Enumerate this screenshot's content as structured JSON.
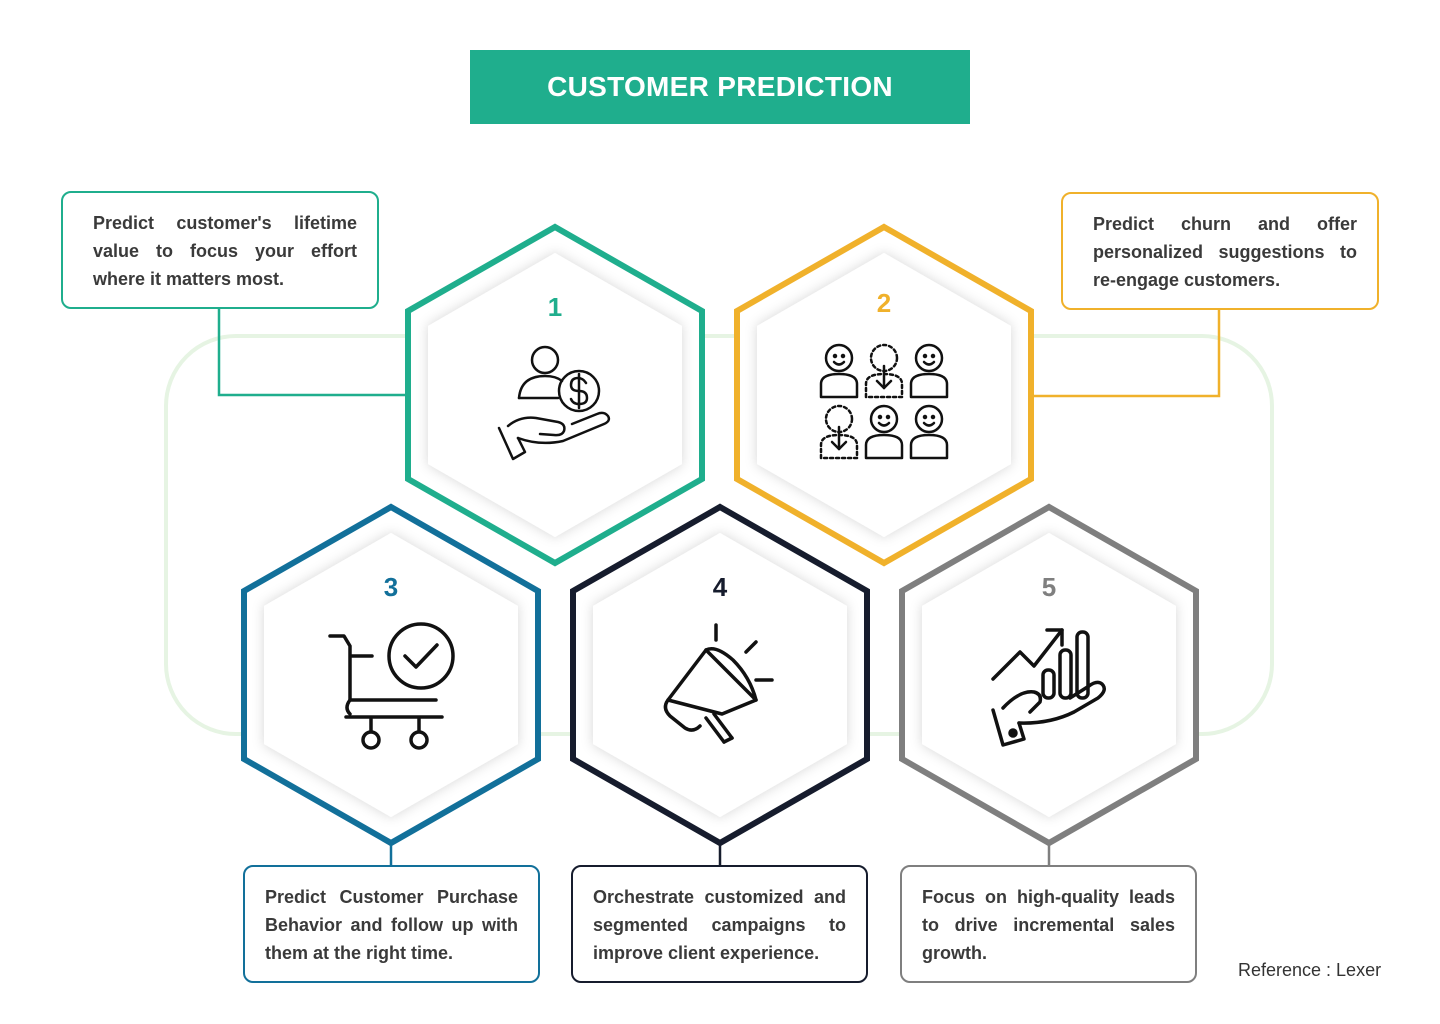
{
  "title": "CUSTOMER PREDICTION",
  "colors": {
    "teal": "#1fae8d",
    "gold": "#f0b12b",
    "blue": "#12709a",
    "navy": "#161c2d",
    "gray": "#7f7f7f",
    "loop": "#e6f4e3"
  },
  "steps": [
    {
      "number": "1",
      "text": "Predict customer's lifetime value to focus your effort where it matters most.",
      "icon": "customer-value-icon",
      "color": "#1fae8d"
    },
    {
      "number": "2",
      "text": "Predict churn and offer personalized suggestions to re-engage customers.",
      "icon": "churn-customers-icon",
      "color": "#f0b12b"
    },
    {
      "number": "3",
      "text": "Predict Customer Purchase Behavior and follow up with them at the right time.",
      "icon": "cart-check-icon",
      "color": "#12709a"
    },
    {
      "number": "4",
      "text": "Orchestrate customized and segmented campaigns to improve client experience.",
      "icon": "megaphone-icon",
      "color": "#161c2d"
    },
    {
      "number": "5",
      "text": "Focus on high-quality leads to drive incremental sales growth.",
      "icon": "growth-hand-icon",
      "color": "#7f7f7f"
    }
  ],
  "reference": "Reference : Lexer"
}
